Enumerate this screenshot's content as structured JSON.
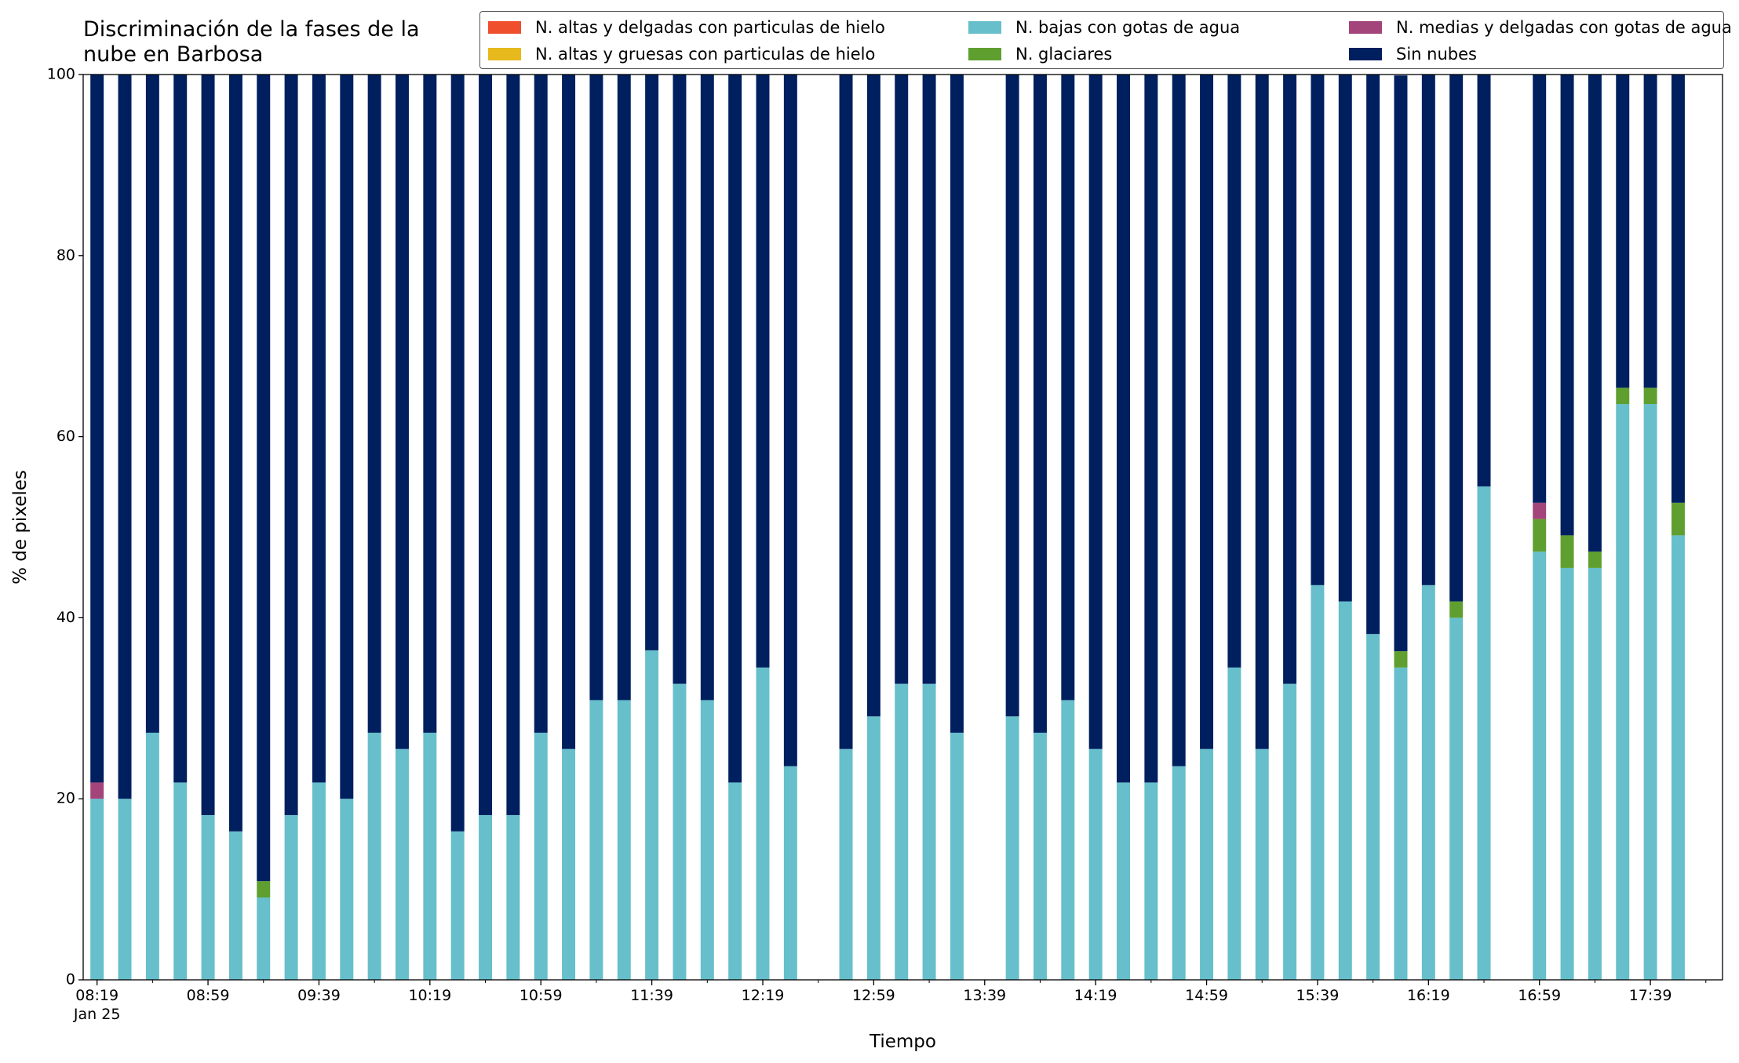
{
  "chart_data": {
    "type": "stacked_bar",
    "title": "Discriminación de la fases de la\nnube en Barbosa",
    "xlabel": "Tiempo",
    "ylabel": "% de pixeles",
    "x_date": "Jan 25",
    "x": [
      "08:19",
      "08:29",
      "08:39",
      "08:49",
      "08:59",
      "09:09",
      "09:19",
      "09:29",
      "09:39",
      "09:49",
      "09:59",
      "10:09",
      "10:19",
      "10:29",
      "10:39",
      "10:49",
      "10:59",
      "11:09",
      "11:19",
      "11:29",
      "11:39",
      "11:49",
      "11:59",
      "12:09",
      "12:19",
      "12:29",
      "12:49",
      "12:59",
      "13:09",
      "13:19",
      "13:29",
      "13:49",
      "13:59",
      "14:09",
      "14:19",
      "14:29",
      "14:39",
      "14:49",
      "14:59",
      "15:09",
      "15:19",
      "15:29",
      "15:39",
      "15:49",
      "15:59",
      "16:09",
      "16:19",
      "16:29",
      "16:39",
      "16:59",
      "17:09",
      "17:19",
      "17:29",
      "17:39",
      "17:49"
    ],
    "xlim": [
      "08:14",
      "18:05"
    ],
    "xticks": [
      "08:19",
      "08:59",
      "09:39",
      "10:19",
      "10:59",
      "11:39",
      "12:19",
      "12:59",
      "13:39",
      "14:19",
      "14:59",
      "15:39",
      "16:19",
      "16:59",
      "17:39"
    ],
    "xticks_minor": [
      "08:39",
      "09:19",
      "09:59",
      "10:39",
      "11:19",
      "11:59",
      "12:39",
      "13:19",
      "13:59",
      "14:39",
      "15:19",
      "15:59",
      "16:39",
      "17:19",
      "17:59"
    ],
    "ylim": [
      0,
      100
    ],
    "yticks": [
      0,
      20,
      40,
      60,
      80,
      100
    ],
    "legend_position": "top right",
    "legend_columns": 3,
    "series": [
      {
        "name": "N. altas y delgadas con particulas de hielo",
        "color": "#ef4f2c",
        "values": [
          0,
          0,
          0,
          0,
          0,
          0,
          0,
          0,
          0,
          0,
          0,
          0,
          0,
          0,
          0,
          0,
          0,
          0,
          0,
          0,
          0,
          0,
          0,
          0,
          0,
          0,
          0,
          0,
          0,
          0,
          0,
          0,
          0,
          0,
          0,
          0,
          0,
          0,
          0,
          0,
          0,
          0,
          0,
          0,
          0,
          0,
          0,
          0,
          0,
          0,
          0,
          0,
          0,
          0,
          0
        ]
      },
      {
        "name": "N. altas y gruesas con particulas de hielo",
        "color": "#e7b91d",
        "values": [
          0,
          0,
          0,
          0,
          0,
          0,
          0,
          0,
          0,
          0,
          0,
          0,
          0,
          0,
          0,
          0,
          0,
          0,
          0,
          0,
          0,
          0,
          0,
          0,
          0,
          0,
          0,
          0,
          0,
          0,
          0,
          0,
          0,
          0,
          0,
          0,
          0,
          0,
          0,
          0,
          0,
          0,
          0,
          0,
          0,
          0,
          0,
          0,
          0,
          0,
          0,
          0,
          0,
          0,
          0
        ]
      },
      {
        "name": "N. bajas con gotas de agua",
        "color": "#66bfcb",
        "values": [
          20.0,
          20.0,
          27.3,
          21.8,
          18.2,
          16.4,
          9.1,
          18.2,
          21.8,
          20.0,
          27.3,
          25.5,
          27.3,
          16.4,
          18.2,
          18.2,
          27.3,
          25.5,
          30.9,
          30.9,
          36.4,
          32.7,
          30.9,
          21.8,
          34.5,
          23.6,
          25.5,
          29.1,
          32.7,
          32.7,
          27.3,
          29.1,
          27.3,
          30.9,
          25.5,
          21.8,
          21.8,
          23.6,
          25.5,
          34.5,
          25.5,
          32.7,
          43.6,
          41.8,
          38.2,
          34.5,
          43.6,
          40.0,
          54.5,
          47.3,
          45.5,
          45.5,
          63.6,
          63.6,
          49.1
        ]
      },
      {
        "name": "N. glaciares",
        "color": "#5f9f2f",
        "values": [
          0,
          0,
          0,
          0,
          0,
          0,
          1.8,
          0,
          0,
          0,
          0,
          0,
          0,
          0,
          0,
          0,
          0,
          0,
          0,
          0,
          0,
          0,
          0,
          0,
          0,
          0,
          0,
          0,
          0,
          0,
          0,
          0,
          0,
          0,
          0,
          0,
          0,
          0,
          0,
          0,
          0,
          0,
          0,
          0,
          0,
          1.8,
          0,
          1.8,
          0,
          3.6,
          3.6,
          1.8,
          1.8,
          1.8,
          3.6
        ]
      },
      {
        "name": "N. medias y delgadas con gotas de agua",
        "color": "#a3447a",
        "values": [
          1.8,
          0,
          0,
          0,
          0,
          0,
          0,
          0,
          0,
          0,
          0,
          0,
          0,
          0,
          0,
          0,
          0,
          0,
          0,
          0,
          0,
          0,
          0,
          0,
          0,
          0,
          0,
          0,
          0,
          0,
          0,
          0,
          0,
          0,
          0,
          0,
          0,
          0,
          0,
          0,
          0,
          0,
          0,
          0,
          0,
          0,
          0,
          0,
          0,
          1.8,
          0,
          0,
          0,
          0,
          0
        ]
      },
      {
        "name": "Sin nubes",
        "color": "#001f5f",
        "values": [
          78.2,
          80.0,
          72.7,
          78.2,
          81.8,
          83.6,
          89.1,
          81.8,
          78.2,
          80.0,
          72.7,
          74.5,
          72.7,
          83.6,
          81.8,
          81.8,
          72.7,
          74.5,
          69.1,
          69.1,
          63.6,
          67.3,
          69.1,
          78.2,
          65.5,
          76.4,
          74.5,
          70.9,
          67.3,
          67.3,
          72.7,
          70.9,
          72.7,
          69.1,
          74.5,
          78.2,
          78.2,
          76.4,
          74.5,
          65.5,
          74.5,
          67.3,
          56.4,
          58.2,
          61.8,
          63.6,
          56.4,
          58.2,
          45.5,
          47.3,
          50.9,
          52.7,
          34.6,
          34.6,
          47.3
        ]
      }
    ]
  }
}
